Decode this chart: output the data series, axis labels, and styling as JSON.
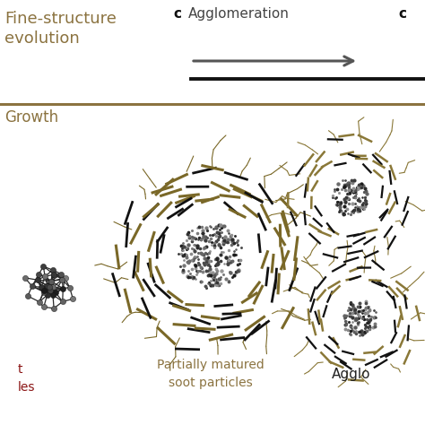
{
  "bg_color": "#ffffff",
  "title_color": "#8B7340",
  "dark_color": "#333333",
  "arrow_color": "#555555",
  "soot_gold": "#7a6828",
  "soot_dark": "#111111",
  "text_fine_structure": "Fine-structure\nevolution",
  "text_growth": "Growth",
  "text_agglomeration": "Agglomeration",
  "text_partially": "Partially matured\nsoot particles",
  "text_agglo_label": "Agglo",
  "figsize": [
    4.74,
    4.74
  ],
  "dpi": 100
}
